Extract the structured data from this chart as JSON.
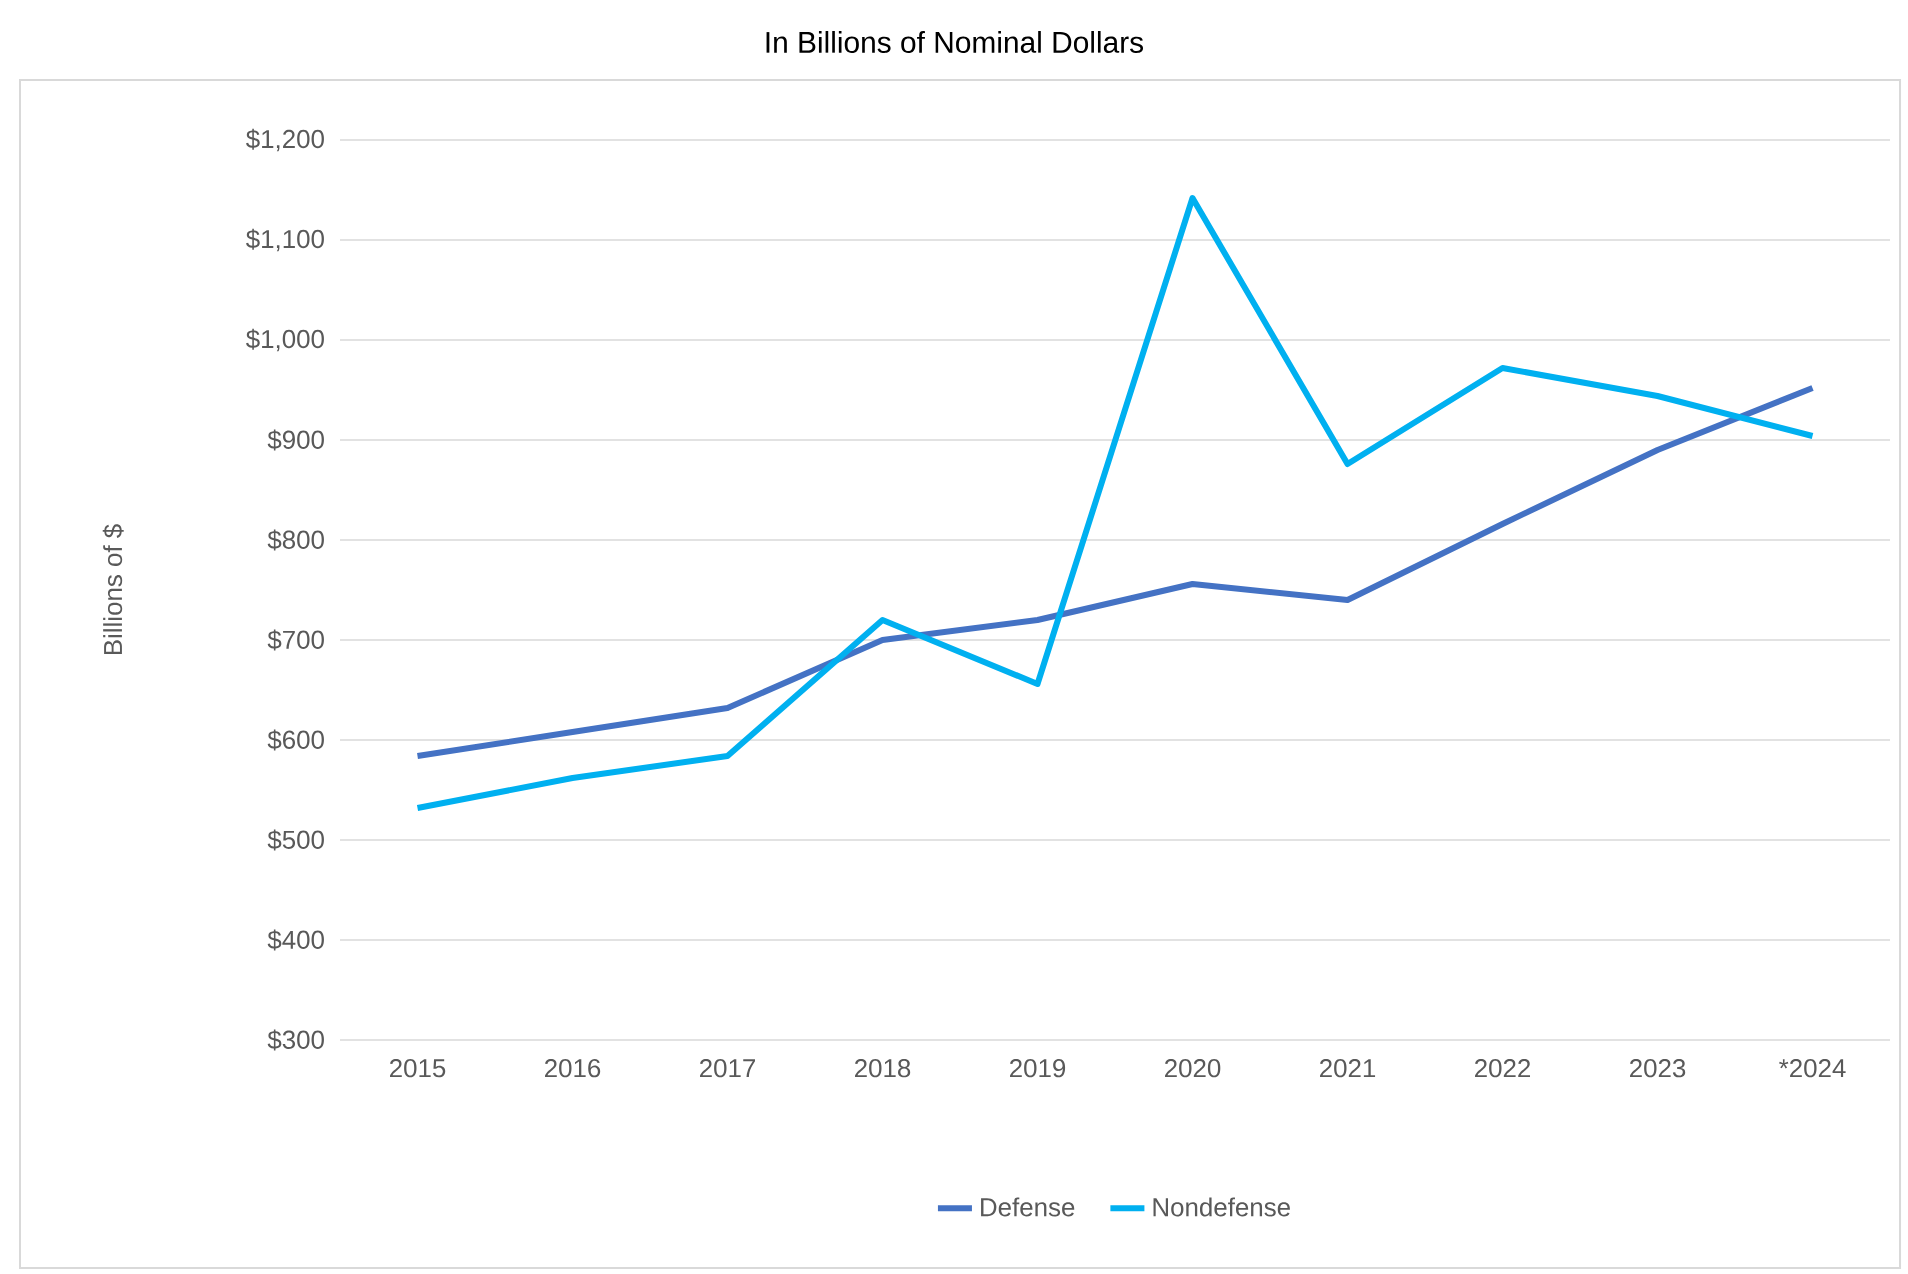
{
  "chart_data": {
    "type": "line",
    "title": "In Billions of Nominal Dollars",
    "ylabel": "Billions of $",
    "categories": [
      "2015",
      "2016",
      "2017",
      "2018",
      "2019",
      "2020",
      "2021",
      "2022",
      "2023",
      "*2024"
    ],
    "series": [
      {
        "name": "Defense",
        "color": "#4472c4",
        "values": [
          584,
          608,
          632,
          700,
          720,
          756,
          740,
          816,
          890,
          952
        ]
      },
      {
        "name": "Nondefense",
        "color": "#00b0f0",
        "values": [
          532,
          562,
          584,
          720,
          656,
          1142,
          876,
          972,
          944,
          904
        ]
      }
    ],
    "ylim": [
      300,
      1200
    ],
    "yticks": [
      {
        "value": 300,
        "label": "$300"
      },
      {
        "value": 400,
        "label": "$400"
      },
      {
        "value": 500,
        "label": "$500"
      },
      {
        "value": 600,
        "label": "$600"
      },
      {
        "value": 700,
        "label": "$700"
      },
      {
        "value": 800,
        "label": "$800"
      },
      {
        "value": 900,
        "label": "$900"
      },
      {
        "value": 1000,
        "label": "$1,000"
      },
      {
        "value": 1100,
        "label": "$1,100"
      },
      {
        "value": 1200,
        "label": "$1,200"
      }
    ],
    "grid": "y",
    "legend": "bottom"
  }
}
